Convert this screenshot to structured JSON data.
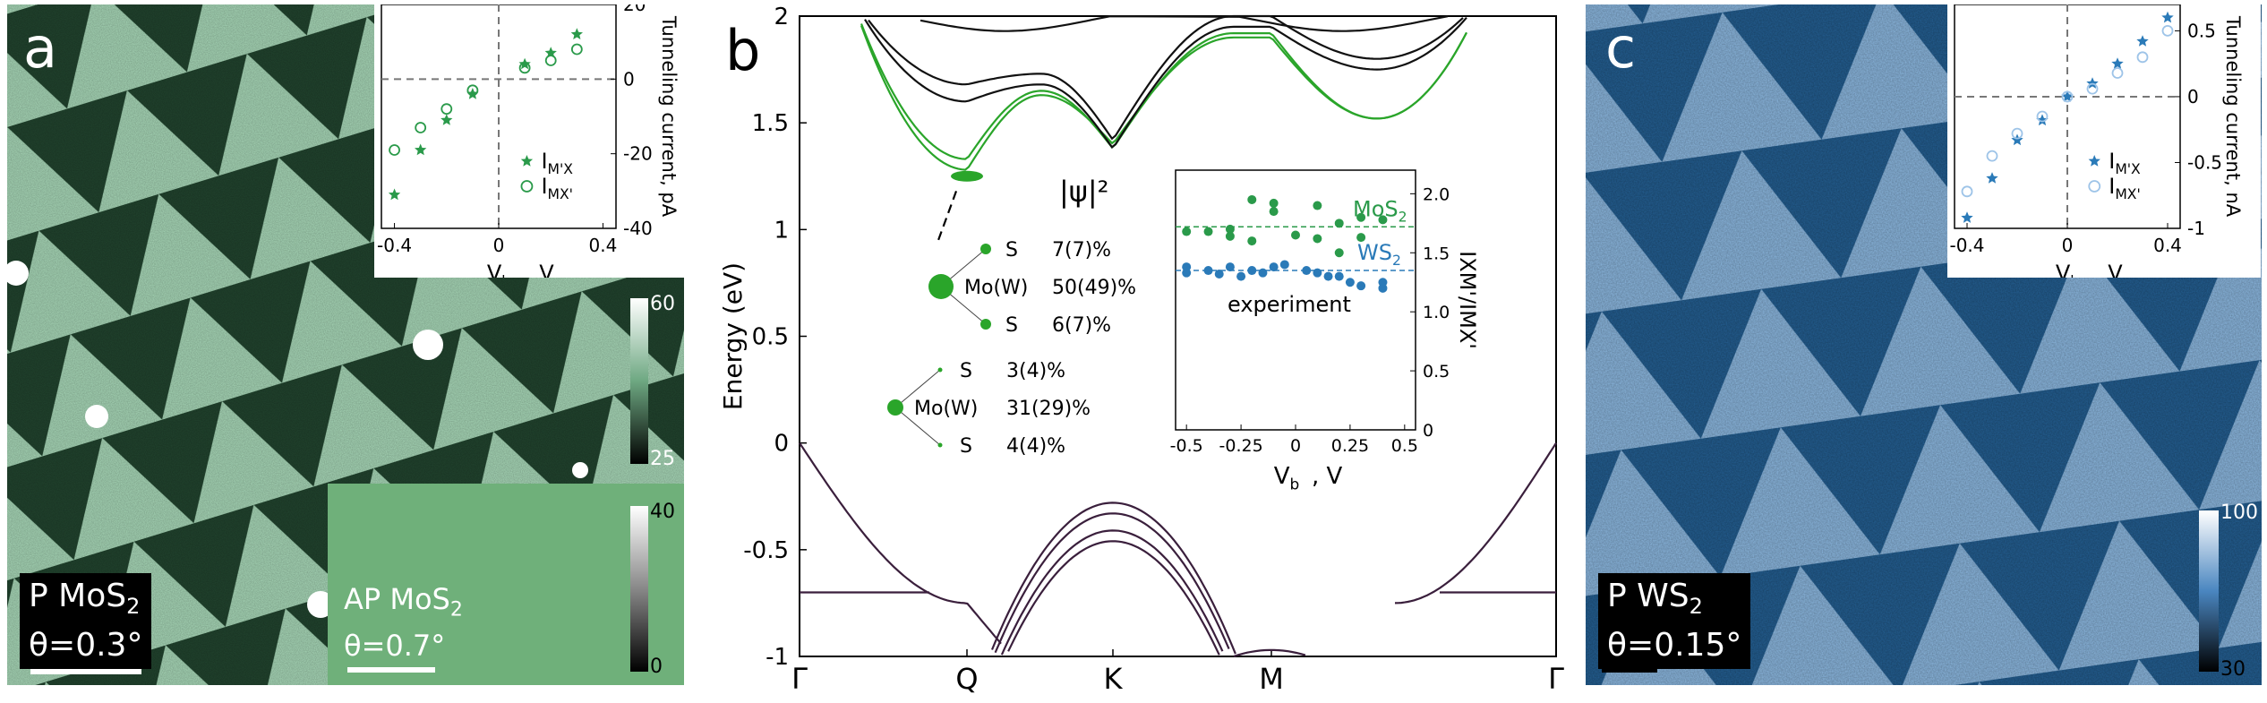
{
  "panel_a": {
    "letter": "a",
    "main_label_line1": "P MoS",
    "main_label_sub": "2",
    "main_label_line2": "θ=0.3°",
    "inset_label_line1": "AP MoS",
    "inset_label_sub": "2",
    "inset_label_line2": "θ=0.7°",
    "colorbar_main": {
      "max": "60",
      "min": "25"
    },
    "colorbar_inset": {
      "max": "40",
      "min": "0"
    },
    "colors": {
      "light": "#a8d8b8",
      "dark": "#1f3f2d",
      "inset": "#6fb07a"
    }
  },
  "panel_c": {
    "letter": "c",
    "label_line1": "P WS",
    "label_sub": "2",
    "label_line2": "θ=0.15°",
    "colorbar": {
      "max": "100",
      "min": "30"
    },
    "colors": {
      "light": "#8cb8e0",
      "dark": "#1f5a8a"
    }
  },
  "chart_data": [
    {
      "id": "inset_a",
      "type": "scatter",
      "xlabel": "Vb, V",
      "ylabel": "Tunneling current, pA",
      "xticks": [
        "-0.4",
        "0",
        "0.4"
      ],
      "yticks": [
        "20",
        "0",
        "-20",
        "-40"
      ],
      "xlim": [
        -0.45,
        0.45
      ],
      "ylim": [
        -40,
        20
      ],
      "legend": [
        "IM'X",
        "IMX'"
      ],
      "series": [
        {
          "name": "IM'X",
          "marker": "star",
          "color": "#2a9a4a",
          "points": [
            [
              -0.4,
              -31
            ],
            [
              -0.3,
              -19
            ],
            [
              -0.2,
              -11
            ],
            [
              -0.1,
              -4
            ],
            [
              0.1,
              4
            ],
            [
              0.2,
              7
            ],
            [
              0.3,
              12
            ]
          ]
        },
        {
          "name": "IMX'",
          "marker": "circle",
          "color": "#2a9a4a",
          "points": [
            [
              -0.4,
              -19
            ],
            [
              -0.3,
              -13
            ],
            [
              -0.2,
              -8
            ],
            [
              -0.1,
              -3
            ],
            [
              0.1,
              3
            ],
            [
              0.2,
              5
            ],
            [
              0.3,
              8
            ]
          ]
        }
      ]
    },
    {
      "id": "panel_b",
      "type": "line",
      "letter": "b",
      "ylabel": "Energy (eV)",
      "yticks": [
        "2",
        "1.5",
        "1",
        "0.5",
        "0",
        "-0.5",
        "-1"
      ],
      "ylim": [
        -1,
        2
      ],
      "xticks": [
        "Γ",
        "Q",
        "K",
        "M",
        "Γ"
      ],
      "psi_label": "|ψ|²",
      "orbitals_upper": [
        {
          "atom": "S",
          "weight": "7(7)%"
        },
        {
          "atom": "Mo(W)",
          "weight": "50(49)%"
        },
        {
          "atom": "S",
          "weight": "6(7)%"
        }
      ],
      "orbitals_lower": [
        {
          "atom": "S",
          "weight": "3(4)%"
        },
        {
          "atom": "Mo(W)",
          "weight": "31(29)%"
        },
        {
          "atom": "S",
          "weight": "4(4)%"
        }
      ],
      "colors": {
        "green": "#2aa52a",
        "black": "#111111",
        "purple": "#3a1f3c"
      }
    },
    {
      "id": "inset_b",
      "type": "scatter",
      "xlabel": "Vb, V",
      "ylabel": "IXM'/IMX'",
      "xticks": [
        "-0.5",
        "-0.25",
        "0",
        "0.25",
        "0.5"
      ],
      "yticks": [
        "2.0",
        "1.5",
        "1.0",
        "0.5",
        "0"
      ],
      "xlim": [
        -0.55,
        0.55
      ],
      "ylim": [
        0,
        2.2
      ],
      "note": "experiment",
      "series": [
        {
          "name": "MoS2",
          "color": "#2a9a4a",
          "mean": 1.72,
          "points": [
            [
              -0.5,
              1.68
            ],
            [
              -0.4,
              1.68
            ],
            [
              -0.3,
              1.7
            ],
            [
              -0.3,
              1.64
            ],
            [
              -0.2,
              1.95
            ],
            [
              -0.2,
              1.6
            ],
            [
              -0.1,
              1.92
            ],
            [
              -0.1,
              1.85
            ],
            [
              0,
              1.65
            ],
            [
              0.1,
              1.9
            ],
            [
              0.1,
              1.62
            ],
            [
              0.2,
              1.75
            ],
            [
              0.2,
              1.5
            ],
            [
              0.3,
              1.8
            ],
            [
              0.3,
              1.63
            ],
            [
              0.4,
              1.78
            ]
          ]
        },
        {
          "name": "WS2",
          "color": "#2a7ab8",
          "mean": 1.35,
          "points": [
            [
              -0.5,
              1.38
            ],
            [
              -0.5,
              1.33
            ],
            [
              -0.4,
              1.35
            ],
            [
              -0.35,
              1.32
            ],
            [
              -0.3,
              1.38
            ],
            [
              -0.25,
              1.3
            ],
            [
              -0.2,
              1.35
            ],
            [
              -0.15,
              1.33
            ],
            [
              -0.1,
              1.38
            ],
            [
              -0.05,
              1.4
            ],
            [
              0.05,
              1.35
            ],
            [
              0.1,
              1.33
            ],
            [
              0.15,
              1.3
            ],
            [
              0.2,
              1.3
            ],
            [
              0.25,
              1.25
            ],
            [
              0.3,
              1.22
            ],
            [
              0.4,
              1.2
            ],
            [
              0.4,
              1.25
            ]
          ]
        }
      ]
    },
    {
      "id": "inset_c",
      "type": "scatter",
      "xlabel": "Vb, V",
      "ylabel": "Tunneling current, nA",
      "xticks": [
        "-0.4",
        "0",
        "0.4"
      ],
      "yticks": [
        "0.5",
        "0",
        "-0.5",
        "-1"
      ],
      "xlim": [
        -0.45,
        0.45
      ],
      "ylim": [
        -1,
        0.7
      ],
      "legend": [
        "IM'X",
        "IMX'"
      ],
      "series": [
        {
          "name": "IM'X",
          "marker": "star",
          "color": "#2a7ab8",
          "points": [
            [
              -0.4,
              -0.92
            ],
            [
              -0.3,
              -0.62
            ],
            [
              -0.2,
              -0.33
            ],
            [
              -0.1,
              -0.18
            ],
            [
              0,
              0
            ],
            [
              0.1,
              0.1
            ],
            [
              0.2,
              0.25
            ],
            [
              0.3,
              0.42
            ],
            [
              0.4,
              0.6
            ]
          ]
        },
        {
          "name": "IMX'",
          "marker": "circle",
          "color": "#9ec4e8",
          "points": [
            [
              -0.4,
              -0.72
            ],
            [
              -0.3,
              -0.45
            ],
            [
              -0.2,
              -0.28
            ],
            [
              -0.1,
              -0.15
            ],
            [
              0,
              0
            ],
            [
              0.1,
              0.06
            ],
            [
              0.2,
              0.18
            ],
            [
              0.3,
              0.3
            ],
            [
              0.4,
              0.5
            ]
          ]
        }
      ]
    }
  ]
}
